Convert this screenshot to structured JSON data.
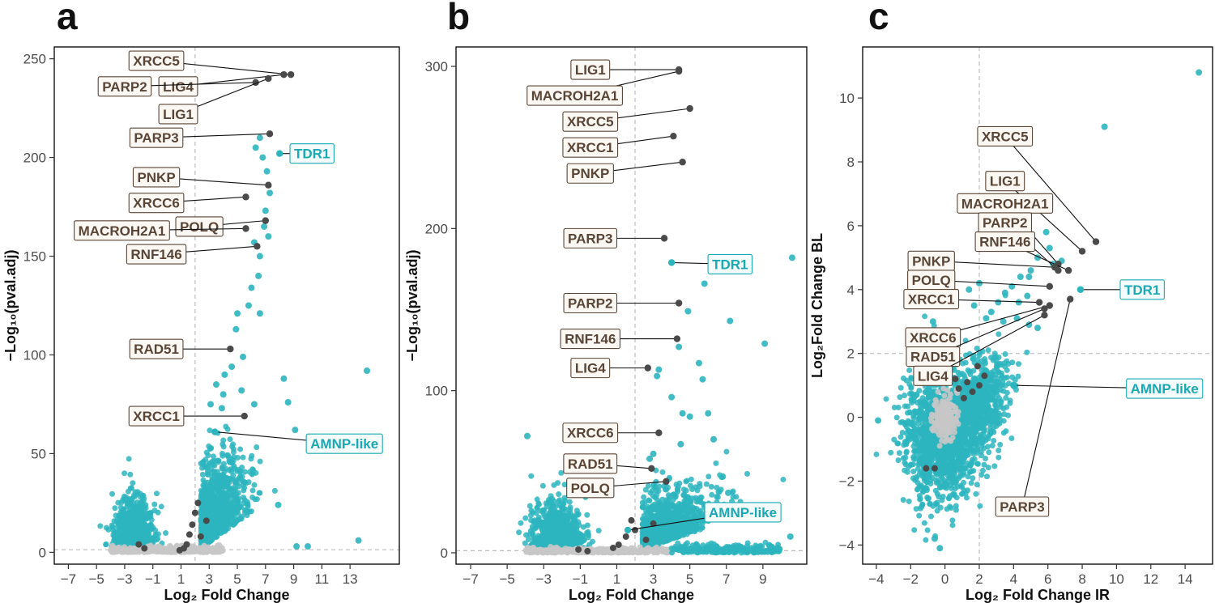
{
  "colors": {
    "significant": "#2db5be",
    "labeled_gene": "#4a4a4a",
    "nonsignificant": "#c7c7c7",
    "label_text_dark": "#5a4536",
    "label_text_teal": "#1aa9b4",
    "label_fill_dark": "#fbf8f4",
    "label_fill_teal": "#f4fbfb"
  },
  "chart_data": [
    {
      "panel": "a",
      "type": "scatter",
      "xlabel": "Log₂ Fold Change",
      "ylabel": "−Log₁₀(pval.adj)",
      "xlim": [
        -8,
        16.5
      ],
      "ylim": [
        -6,
        256
      ],
      "xticks": [
        -7,
        -5,
        -3,
        -1,
        1,
        3,
        5,
        7,
        9,
        11,
        13
      ],
      "yticks": [
        0,
        50,
        100,
        150,
        200,
        250
      ],
      "vline": 2,
      "hline": 1.3,
      "cloud_points": [
        {
          "x": 14.2,
          "y": 92
        },
        {
          "x": 13.6,
          "y": 6
        },
        {
          "x": 9.1,
          "y": 62
        },
        {
          "x": 8.6,
          "y": 76
        },
        {
          "x": 8.3,
          "y": 88
        },
        {
          "x": 7.9,
          "y": 24
        },
        {
          "x": 9.2,
          "y": 3
        },
        {
          "x": 10.0,
          "y": 3
        },
        {
          "x": 6.8,
          "y": 200
        },
        {
          "x": 6.6,
          "y": 210
        },
        {
          "x": 6.3,
          "y": 205
        },
        {
          "x": 7.1,
          "y": 193
        },
        {
          "x": 7.3,
          "y": 182
        },
        {
          "x": 7.0,
          "y": 173
        },
        {
          "x": 7.2,
          "y": 160
        },
        {
          "x": 6.9,
          "y": 165
        },
        {
          "x": 6.2,
          "y": 157
        },
        {
          "x": 6.6,
          "y": 150
        },
        {
          "x": 6.5,
          "y": 140
        },
        {
          "x": 6.0,
          "y": 134
        },
        {
          "x": 5.8,
          "y": 125
        },
        {
          "x": 6.6,
          "y": 121
        },
        {
          "x": 5.0,
          "y": 121
        },
        {
          "x": 4.9,
          "y": 113
        },
        {
          "x": 4.6,
          "y": 94
        },
        {
          "x": 4.1,
          "y": 90
        },
        {
          "x": 3.5,
          "y": 85
        },
        {
          "x": 5.4,
          "y": 99
        },
        {
          "x": 4.0,
          "y": 80
        },
        {
          "x": 5.3,
          "y": 82
        },
        {
          "x": 3.1,
          "y": 75
        },
        {
          "x": 3.9,
          "y": 73
        },
        {
          "x": 6.2,
          "y": 75
        }
      ],
      "labeled_points": [
        {
          "name": "XRCC5",
          "x": 8.8,
          "y": 242,
          "lx": -0.75,
          "ly": 249,
          "color": "dark"
        },
        {
          "name": "LIG4",
          "x": 8.3,
          "y": 242,
          "lx": 0.8,
          "ly": 236,
          "color": "dark"
        },
        {
          "name": "PARP2",
          "x": 6.3,
          "y": 238,
          "lx": -3.0,
          "ly": 236,
          "color": "dark"
        },
        {
          "name": "LIG1",
          "x": 7.2,
          "y": 240,
          "lx": 0.8,
          "ly": 222,
          "color": "dark"
        },
        {
          "name": "PARP3",
          "x": 7.3,
          "y": 212,
          "lx": -0.75,
          "ly": 210,
          "color": "dark"
        },
        {
          "name": "TDR1",
          "x": 8.0,
          "y": 202,
          "lx": 10.3,
          "ly": 202,
          "color": "teal"
        },
        {
          "name": "PNKP",
          "x": 7.2,
          "y": 186,
          "lx": -0.75,
          "ly": 190,
          "color": "dark"
        },
        {
          "name": "XRCC6",
          "x": 5.6,
          "y": 180,
          "lx": -0.75,
          "ly": 177,
          "color": "dark"
        },
        {
          "name": "POLQ",
          "x": 7.0,
          "y": 168,
          "lx": 2.3,
          "ly": 165,
          "color": "dark"
        },
        {
          "name": "MACROH2A1",
          "x": 5.6,
          "y": 164,
          "lx": -3.2,
          "ly": 163,
          "color": "dark"
        },
        {
          "name": "RNF146",
          "x": 6.4,
          "y": 155,
          "lx": -0.75,
          "ly": 151,
          "color": "dark"
        },
        {
          "name": "RAD51",
          "x": 4.5,
          "y": 103,
          "lx": -0.75,
          "ly": 103,
          "color": "dark"
        },
        {
          "name": "XRCC1",
          "x": 5.5,
          "y": 69,
          "lx": -0.75,
          "ly": 69,
          "color": "dark"
        },
        {
          "name": "AMNP-like",
          "x": 3.4,
          "y": 61,
          "lx": 12.6,
          "ly": 55,
          "color": "teal"
        }
      ]
    },
    {
      "panel": "b",
      "type": "scatter",
      "xlabel": "Log₂ Fold Change",
      "ylabel": "−Log₁₀(pval.adj)",
      "xlim": [
        -7.8,
        11.4
      ],
      "ylim": [
        -7,
        312
      ],
      "xticks": [
        -7,
        -5,
        -3,
        -1,
        1,
        3,
        5,
        7,
        9
      ],
      "yticks": [
        0,
        100,
        200,
        300
      ],
      "vline": 2,
      "hline": 1.3,
      "cloud_points": [
        {
          "x": 10.6,
          "y": 182
        },
        {
          "x": 5.8,
          "y": 166
        },
        {
          "x": 7.2,
          "y": 143
        },
        {
          "x": 9.1,
          "y": 129
        },
        {
          "x": 4.9,
          "y": 149
        },
        {
          "x": 4.4,
          "y": 127
        },
        {
          "x": 5.5,
          "y": 117
        },
        {
          "x": 3.3,
          "y": 113
        },
        {
          "x": 3.2,
          "y": 109
        },
        {
          "x": 5.7,
          "y": 107
        },
        {
          "x": 4.0,
          "y": 96
        },
        {
          "x": 4.6,
          "y": 86
        },
        {
          "x": 6.0,
          "y": 86
        },
        {
          "x": 6.3,
          "y": 70
        },
        {
          "x": 4.5,
          "y": 67
        },
        {
          "x": 5.0,
          "y": 84
        },
        {
          "x": -3.9,
          "y": 72
        },
        {
          "x": 3.0,
          "y": 61
        },
        {
          "x": 2.8,
          "y": 58
        },
        {
          "x": 6.8,
          "y": 47
        },
        {
          "x": 7.1,
          "y": 37
        },
        {
          "x": 10.5,
          "y": 10
        }
      ],
      "labeled_points": [
        {
          "name": "LIG1",
          "x": 4.4,
          "y": 298,
          "lx": -0.45,
          "ly": 298,
          "color": "dark"
        },
        {
          "name": "MACROH2A1",
          "x": 4.4,
          "y": 297,
          "lx": -1.3,
          "ly": 282,
          "color": "dark"
        },
        {
          "name": "XRCC5",
          "x": 5.0,
          "y": 274,
          "lx": -0.45,
          "ly": 266,
          "color": "dark"
        },
        {
          "name": "XRCC1",
          "x": 4.1,
          "y": 257,
          "lx": -0.45,
          "ly": 250,
          "color": "dark"
        },
        {
          "name": "PNKP",
          "x": 4.6,
          "y": 241,
          "lx": -0.45,
          "ly": 234,
          "color": "dark"
        },
        {
          "name": "PARP3",
          "x": 3.6,
          "y": 194,
          "lx": -0.45,
          "ly": 194,
          "color": "dark"
        },
        {
          "name": "TDR1",
          "x": 4.0,
          "y": 179,
          "lx": 7.2,
          "ly": 178,
          "color": "teal"
        },
        {
          "name": "PARP2",
          "x": 4.4,
          "y": 154,
          "lx": -0.45,
          "ly": 154,
          "color": "dark"
        },
        {
          "name": "RNF146",
          "x": 4.3,
          "y": 132,
          "lx": -0.45,
          "ly": 132,
          "color": "dark"
        },
        {
          "name": "LIG4",
          "x": 2.7,
          "y": 114,
          "lx": -0.45,
          "ly": 114,
          "color": "dark"
        },
        {
          "name": "XRCC6",
          "x": 3.3,
          "y": 74,
          "lx": -0.45,
          "ly": 74,
          "color": "dark"
        },
        {
          "name": "RAD51",
          "x": 2.9,
          "y": 52,
          "lx": -0.45,
          "ly": 55,
          "color": "dark"
        },
        {
          "name": "POLQ",
          "x": 3.7,
          "y": 44,
          "lx": -0.45,
          "ly": 40,
          "color": "dark"
        },
        {
          "name": "AMNP-like",
          "x": 1.6,
          "y": 14,
          "lx": 7.9,
          "ly": 25,
          "color": "teal"
        }
      ]
    },
    {
      "panel": "c",
      "type": "scatter",
      "xlabel": "Log₂ Fold Change IR",
      "ylabel": "Log₂Fold Change BL",
      "xlim": [
        -4.8,
        15.6
      ],
      "ylim": [
        -4.6,
        11.6
      ],
      "xticks": [
        -4,
        -2,
        0,
        2,
        4,
        6,
        8,
        10,
        12,
        14
      ],
      "yticks": [
        -4,
        -2,
        0,
        2,
        4,
        6,
        8,
        10
      ],
      "vline": 2,
      "hline": 2,
      "cloud_points": [
        {
          "x": 14.8,
          "y": 10.8
        },
        {
          "x": 9.3,
          "y": 9.1
        },
        {
          "x": 4.4,
          "y": 7.2
        },
        {
          "x": 5.4,
          "y": 6.6
        },
        {
          "x": 4.9,
          "y": 4.4
        },
        {
          "x": 5.9,
          "y": 5.8
        },
        {
          "x": 6.1,
          "y": 5.3
        },
        {
          "x": 5.4,
          "y": 5.0
        },
        {
          "x": 6.8,
          "y": 4.9
        },
        {
          "x": 6.3,
          "y": 4.8
        },
        {
          "x": 5.0,
          "y": 4.6
        },
        {
          "x": 4.4,
          "y": 4.4
        },
        {
          "x": 3.9,
          "y": 4.1
        },
        {
          "x": 4.8,
          "y": 3.8
        },
        {
          "x": 4.3,
          "y": 3.6
        },
        {
          "x": 3.5,
          "y": 3.9
        },
        {
          "x": 3.1,
          "y": 3.6
        },
        {
          "x": 2.7,
          "y": 3.3
        },
        {
          "x": 3.4,
          "y": 3.0
        },
        {
          "x": 4.2,
          "y": 3.1
        },
        {
          "x": 4.9,
          "y": 2.9
        },
        {
          "x": 5.4,
          "y": 2.8
        },
        {
          "x": 2.4,
          "y": 3.1
        },
        {
          "x": 2.0,
          "y": 4.2
        },
        {
          "x": 1.4,
          "y": 4.0
        },
        {
          "x": 1.7,
          "y": 3.5
        },
        {
          "x": -0.7,
          "y": 3.0
        },
        {
          "x": -1.4,
          "y": 3.5
        },
        {
          "x": -3.9,
          "y": -0.1
        },
        {
          "x": -0.3,
          "y": -4.1
        },
        {
          "x": -0.6,
          "y": -3.8
        }
      ],
      "labeled_points": [
        {
          "name": "XRCC5",
          "x": 8.8,
          "y": 5.5,
          "lx": 3.5,
          "ly": 8.8,
          "color": "dark"
        },
        {
          "name": "LIG1",
          "x": 8.0,
          "y": 5.2,
          "lx": 3.5,
          "ly": 7.4,
          "color": "dark"
        },
        {
          "name": "MACROH2A1",
          "x": 6.6,
          "y": 4.8,
          "lx": 3.5,
          "ly": 6.7,
          "color": "dark"
        },
        {
          "name": "PARP2",
          "x": 6.6,
          "y": 4.6,
          "lx": 3.5,
          "ly": 6.1,
          "color": "dark"
        },
        {
          "name": "RNF146",
          "x": 7.2,
          "y": 4.6,
          "lx": 3.5,
          "ly": 5.5,
          "color": "dark"
        },
        {
          "name": "PNKP",
          "x": 6.4,
          "y": 4.7,
          "lx": -0.8,
          "ly": 4.9,
          "color": "dark"
        },
        {
          "name": "POLQ",
          "x": 6.1,
          "y": 4.1,
          "lx": -0.8,
          "ly": 4.3,
          "color": "dark"
        },
        {
          "name": "XRCC1",
          "x": 5.5,
          "y": 3.6,
          "lx": -0.8,
          "ly": 3.7,
          "color": "dark"
        },
        {
          "name": "TDR1",
          "x": 7.9,
          "y": 4.0,
          "lx": 11.5,
          "ly": 4.0,
          "color": "teal"
        },
        {
          "name": "XRCC6",
          "x": 6.1,
          "y": 3.5,
          "lx": -0.7,
          "ly": 2.5,
          "color": "dark"
        },
        {
          "name": "RAD51",
          "x": 5.8,
          "y": 3.4,
          "lx": -0.7,
          "ly": 1.9,
          "color": "dark"
        },
        {
          "name": "LIG4",
          "x": 5.8,
          "y": 3.2,
          "lx": -0.7,
          "ly": 1.3,
          "color": "dark"
        },
        {
          "name": "PARP3",
          "x": 7.3,
          "y": 3.7,
          "lx": 4.5,
          "ly": -2.8,
          "color": "dark"
        },
        {
          "name": "AMNP-like",
          "x": 4.0,
          "y": 1.0,
          "lx": 12.8,
          "ly": 0.9,
          "color": "teal"
        }
      ]
    }
  ]
}
